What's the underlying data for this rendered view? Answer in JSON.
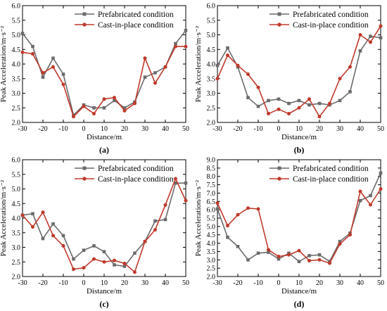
{
  "figure": {
    "series_styles": [
      {
        "color": "#6b6b6b",
        "marker": "square"
      },
      {
        "color": "#c0392b",
        "marker": "circle"
      }
    ]
  },
  "chart_data": [
    {
      "panel": "(a)",
      "type": "line",
      "xlabel": "Distance/m",
      "ylabel": "Peak Acceleration/m·s⁻²",
      "xlim": [
        -30,
        50
      ],
      "ylim": [
        2.0,
        6.0
      ],
      "xticks": [
        -30,
        -20,
        -10,
        0,
        10,
        20,
        30,
        40,
        50
      ],
      "yticks": [
        2.0,
        2.5,
        3.0,
        3.5,
        4.0,
        4.5,
        5.0,
        5.5,
        6.0
      ],
      "legend_position": "top-right",
      "x": [
        -30,
        -25,
        -20,
        -15,
        -10,
        -5,
        0,
        5,
        10,
        15,
        20,
        25,
        30,
        35,
        40,
        45,
        50
      ],
      "series": [
        {
          "name": "Prefabricated condition",
          "values": [
            5.05,
            4.6,
            3.55,
            4.2,
            3.65,
            2.25,
            2.6,
            2.5,
            2.5,
            2.75,
            2.5,
            2.7,
            3.55,
            3.7,
            3.9,
            4.7,
            5.15
          ]
        },
        {
          "name": "Cast-in-place condition",
          "values": [
            4.4,
            4.35,
            3.7,
            3.9,
            3.3,
            2.2,
            2.55,
            2.3,
            2.8,
            2.85,
            2.4,
            2.65,
            4.2,
            3.35,
            3.9,
            4.6,
            4.6
          ]
        }
      ]
    },
    {
      "panel": "(b)",
      "type": "line",
      "xlabel": "Distance/m",
      "ylabel": "Peak Acceleration/m·s⁻²",
      "xlim": [
        -30,
        50
      ],
      "ylim": [
        2.0,
        6.0
      ],
      "xticks": [
        -30,
        -20,
        -10,
        0,
        10,
        20,
        30,
        40,
        50
      ],
      "yticks": [
        2.0,
        2.5,
        3.0,
        3.5,
        4.0,
        4.5,
        5.0,
        5.5,
        6.0
      ],
      "legend_position": "top-right",
      "x": [
        -30,
        -25,
        -20,
        -15,
        -10,
        -5,
        0,
        5,
        10,
        15,
        20,
        25,
        30,
        35,
        40,
        45,
        50
      ],
      "series": [
        {
          "name": "Prefabricated condition",
          "values": [
            3.95,
            4.55,
            3.9,
            2.85,
            2.55,
            2.75,
            2.8,
            2.65,
            2.75,
            2.6,
            2.65,
            2.6,
            2.75,
            3.05,
            4.45,
            4.95,
            4.9
          ]
        },
        {
          "name": "Cast-in-place condition",
          "values": [
            3.5,
            4.3,
            3.95,
            3.65,
            3.2,
            2.3,
            2.45,
            2.3,
            2.5,
            2.8,
            2.2,
            2.65,
            3.5,
            3.9,
            5.0,
            4.75,
            5.3
          ]
        }
      ]
    },
    {
      "panel": "(c)",
      "type": "line",
      "xlabel": "Distance/m",
      "ylabel": "Peak Acceleration/m·s⁻²",
      "xlim": [
        -30,
        50
      ],
      "ylim": [
        2.0,
        6.0
      ],
      "xticks": [
        -30,
        -20,
        -10,
        0,
        10,
        20,
        30,
        40,
        50
      ],
      "yticks": [
        2.0,
        2.5,
        3.0,
        3.5,
        4.0,
        4.5,
        5.0,
        5.5,
        6.0
      ],
      "legend_position": "top-right",
      "x": [
        -30,
        -25,
        -20,
        -15,
        -10,
        -5,
        0,
        5,
        10,
        15,
        20,
        25,
        30,
        35,
        40,
        45,
        50
      ],
      "series": [
        {
          "name": "Prefabricated condition",
          "values": [
            4.1,
            4.15,
            3.3,
            3.8,
            3.4,
            2.6,
            2.9,
            3.05,
            2.85,
            2.4,
            2.35,
            2.8,
            3.2,
            3.9,
            3.95,
            5.2,
            5.2
          ]
        },
        {
          "name": "Cast-in-place condition",
          "values": [
            4.1,
            3.7,
            4.2,
            3.4,
            3.05,
            2.25,
            2.3,
            2.6,
            2.5,
            2.55,
            2.45,
            2.15,
            3.2,
            3.6,
            4.45,
            5.35,
            4.6
          ]
        }
      ]
    },
    {
      "panel": "(d)",
      "type": "line",
      "xlabel": "Distance/m",
      "ylabel": "Peak Acceleration/m·s⁻²",
      "xlim": [
        -30,
        50
      ],
      "ylim": [
        2.0,
        9.0
      ],
      "xticks": [
        -30,
        -20,
        -10,
        0,
        10,
        20,
        30,
        40,
        50
      ],
      "yticks": [
        2.0,
        2.5,
        3.0,
        3.5,
        4.0,
        4.5,
        5.0,
        5.5,
        6.0,
        6.5,
        7.0,
        7.5,
        8.0,
        8.5,
        9.0
      ],
      "legend_position": "top-right",
      "x": [
        -30,
        -25,
        -20,
        -15,
        -10,
        -5,
        0,
        5,
        10,
        15,
        20,
        25,
        30,
        35,
        40,
        45,
        50
      ],
      "series": [
        {
          "name": "Prefabricated condition",
          "values": [
            6.05,
            4.35,
            3.8,
            3.0,
            3.4,
            3.45,
            3.05,
            3.4,
            2.9,
            3.25,
            3.3,
            2.9,
            4.1,
            4.6,
            6.55,
            6.85,
            8.2
          ]
        },
        {
          "name": "Cast-in-place condition",
          "values": [
            6.4,
            5.05,
            5.7,
            6.1,
            6.05,
            3.6,
            3.2,
            3.3,
            3.55,
            2.95,
            3.0,
            2.8,
            3.95,
            4.5,
            7.1,
            6.3,
            7.25
          ]
        }
      ]
    }
  ]
}
